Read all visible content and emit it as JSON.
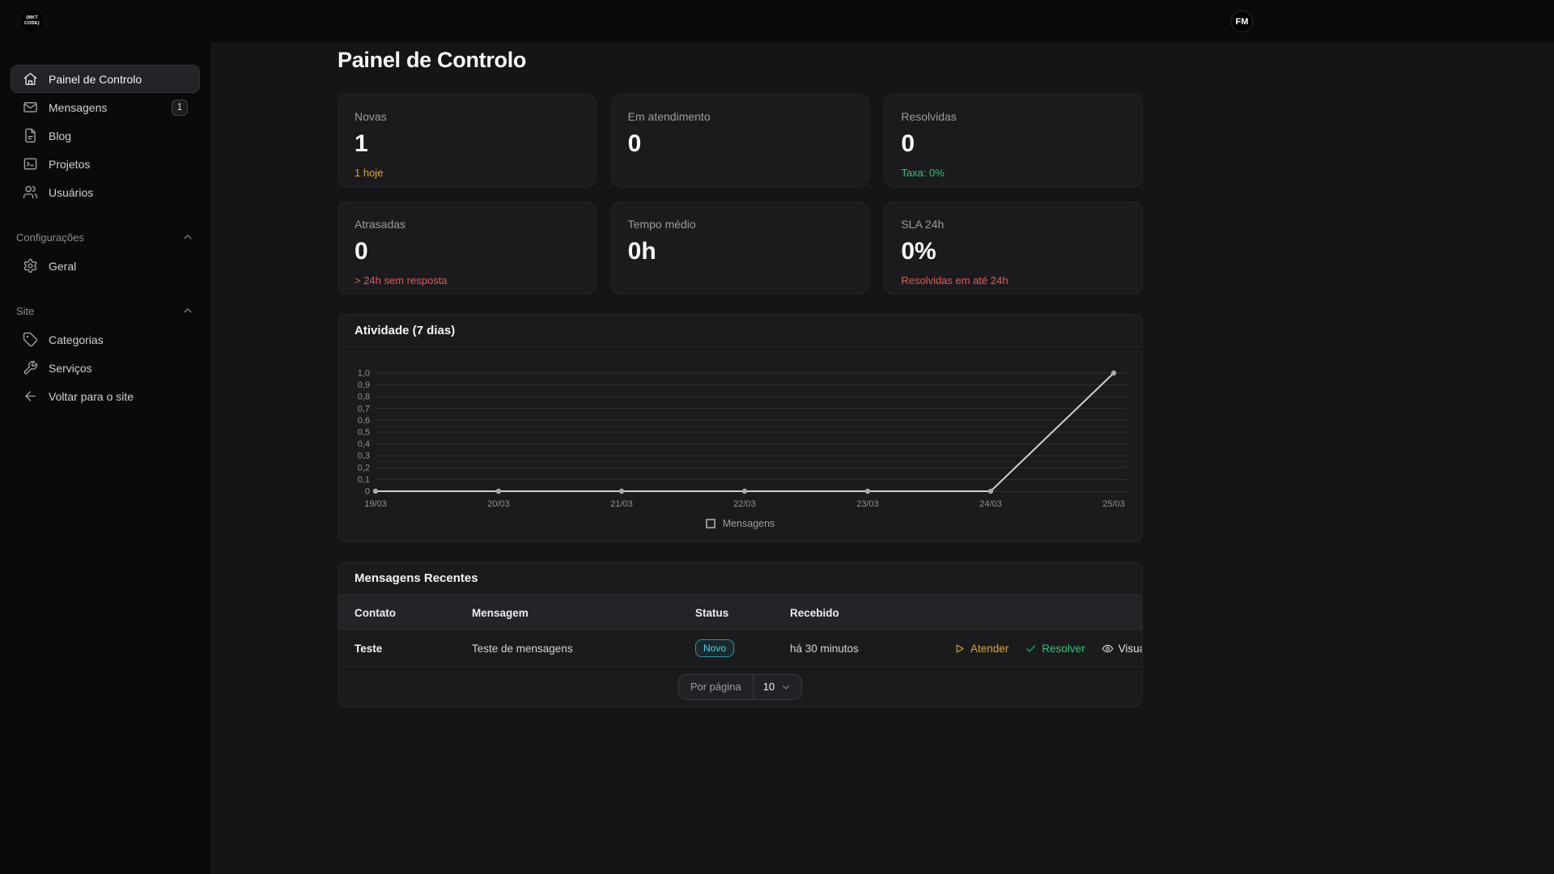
{
  "topbar": {
    "logo_line1": "{MKT",
    "logo_line2": "CODE}",
    "avatar": "FM"
  },
  "page": {
    "title": "Painel de Controlo"
  },
  "sidebar": {
    "main_items": [
      {
        "label": "Painel de Controlo",
        "icon": "home",
        "active": true
      },
      {
        "label": "Mensagens",
        "icon": "mail",
        "badge": "1"
      },
      {
        "label": "Blog",
        "icon": "file"
      },
      {
        "label": "Projetos",
        "icon": "terminal"
      },
      {
        "label": "Usuários",
        "icon": "users"
      }
    ],
    "sections": [
      {
        "title": "Configurações",
        "items": [
          {
            "label": "Geral",
            "icon": "gear"
          }
        ]
      },
      {
        "title": "Site",
        "items": [
          {
            "label": "Categorias",
            "icon": "tag"
          },
          {
            "label": "Serviços",
            "icon": "tools"
          },
          {
            "label": "Voltar para o site",
            "icon": "arrow-left"
          }
        ]
      }
    ]
  },
  "stats": [
    {
      "label": "Novas",
      "value": "1",
      "sub": "1 hoje",
      "sub_color": "amber"
    },
    {
      "label": "Em atendimento",
      "value": "0",
      "sub": "",
      "sub_color": ""
    },
    {
      "label": "Resolvidas",
      "value": "0",
      "sub": "Taxa: 0%",
      "sub_color": "green"
    },
    {
      "label": "Atrasadas",
      "value": "0",
      "sub": "> 24h sem resposta",
      "sub_color": "red"
    },
    {
      "label": "Tempo médio",
      "value": "0h",
      "sub": "",
      "sub_color": ""
    },
    {
      "label": "SLA 24h",
      "value": "0%",
      "sub": "Resolvidas em até 24h",
      "sub_color": "red"
    }
  ],
  "chart": {
    "title": "Atividade (7 dias)"
  },
  "chart_data": {
    "type": "line",
    "title": "Atividade (7 dias)",
    "x": [
      "19/03",
      "20/03",
      "21/03",
      "22/03",
      "23/03",
      "24/03",
      "25/03"
    ],
    "series": [
      {
        "name": "Mensagens",
        "values": [
          0,
          0,
          0,
          0,
          0,
          0,
          1
        ]
      }
    ],
    "ylim": [
      0,
      1.0
    ],
    "ytick_step": 0.1,
    "ytick_labels": [
      "0",
      "0,1",
      "0,2",
      "0,3",
      "0,4",
      "0,5",
      "0,6",
      "0,7",
      "0,8",
      "0,9",
      "1,0"
    ],
    "grid": true,
    "legend_position": "bottom"
  },
  "table": {
    "title": "Mensagens Recentes",
    "columns": [
      "Contato",
      "Mensagem",
      "Status",
      "Recebido"
    ],
    "rows": [
      {
        "contato": "Teste",
        "mensagem": "Teste de mensagens",
        "status": "Novo",
        "recebido": "há 30 minutos"
      }
    ],
    "actions": [
      {
        "label": "Atender",
        "icon": "play",
        "color": "amber"
      },
      {
        "label": "Resolver",
        "icon": "check",
        "color": "green"
      },
      {
        "label": "Visualizar",
        "icon": "eye",
        "color": "light"
      }
    ],
    "pagination": {
      "label": "Por página",
      "value": "10"
    }
  },
  "colors": {
    "amber": "#dca82c",
    "green": "#35c471",
    "red": "#e05c5c",
    "cyan": "#4fd4e3",
    "light": "#e4e4e7"
  }
}
